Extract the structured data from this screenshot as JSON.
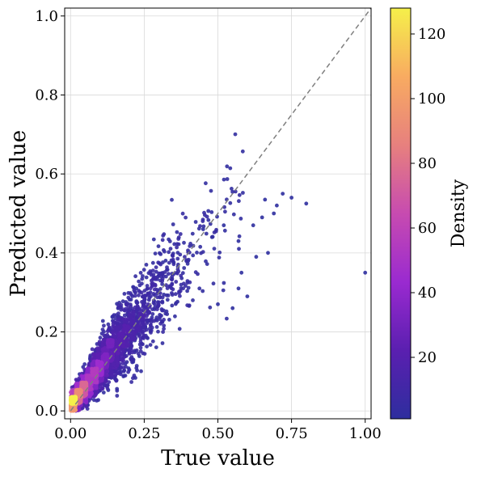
{
  "chart_data": {
    "type": "scatter",
    "title": "",
    "xlabel": "True value",
    "ylabel": "Predicted value",
    "xlim": [
      -0.02,
      1.02
    ],
    "ylim": [
      -0.02,
      1.02
    ],
    "x_ticks": [
      0.0,
      0.25,
      0.5,
      0.75,
      1.0
    ],
    "x_tick_labels": [
      "0.00",
      "0.25",
      "0.50",
      "0.75",
      "1.00"
    ],
    "y_ticks": [
      0.0,
      0.2,
      0.4,
      0.6,
      0.8,
      1.0
    ],
    "y_tick_labels": [
      "0.0",
      "0.2",
      "0.4",
      "0.6",
      "0.8",
      "1.0"
    ],
    "grid": true,
    "reference_line": {
      "from": [
        0,
        0
      ],
      "to": [
        1.02,
        1.02
      ],
      "style": "dashed",
      "color": "#7f7f7f"
    },
    "colorbar": {
      "label": "Density",
      "range": [
        1,
        128
      ],
      "ticks": [
        20,
        40,
        60,
        80,
        100,
        120
      ],
      "tick_labels": [
        "20",
        "40",
        "60",
        "80",
        "100",
        "120"
      ],
      "colormap": "plasma"
    },
    "colormap_stops": [
      "#2e2e9e",
      "#5a1fb0",
      "#9a2ad0",
      "#c74bb0",
      "#e7807e",
      "#f8ab61",
      "#f5f04a"
    ],
    "outlier_points": [
      {
        "x": 1.0,
        "y": 0.35,
        "density": 1
      },
      {
        "x": 0.8,
        "y": 0.525,
        "density": 1
      },
      {
        "x": 0.72,
        "y": 0.55,
        "density": 1
      },
      {
        "x": 0.75,
        "y": 0.54,
        "density": 1
      },
      {
        "x": 0.66,
        "y": 0.535,
        "density": 1
      },
      {
        "x": 0.65,
        "y": 0.49,
        "density": 1
      },
      {
        "x": 0.62,
        "y": 0.47,
        "density": 1
      },
      {
        "x": 0.7,
        "y": 0.52,
        "density": 1
      },
      {
        "x": 0.6,
        "y": 0.29,
        "density": 1
      },
      {
        "x": 0.57,
        "y": 0.31,
        "density": 1
      },
      {
        "x": 0.55,
        "y": 0.26,
        "density": 1
      },
      {
        "x": 0.5,
        "y": 0.27,
        "density": 1
      },
      {
        "x": 0.63,
        "y": 0.39,
        "density": 1
      },
      {
        "x": 0.67,
        "y": 0.4,
        "density": 1
      },
      {
        "x": 0.58,
        "y": 0.35,
        "density": 1
      },
      {
        "x": 0.52,
        "y": 0.47,
        "density": 1
      },
      {
        "x": 0.57,
        "y": 0.43,
        "density": 1
      },
      {
        "x": 0.48,
        "y": 0.44,
        "density": 1
      },
      {
        "x": 0.45,
        "y": 0.46,
        "density": 1
      },
      {
        "x": 0.69,
        "y": 0.5,
        "density": 1
      }
    ],
    "cluster_model": {
      "point_count": 3600,
      "x_distribution": "exponential",
      "x_mean": 0.11,
      "x_max": 0.62,
      "y_over_x_slope": 0.93,
      "y_intercept": 0.015,
      "noise_sd_base": 0.012,
      "noise_sd_per_x": 0.17,
      "peak_density": 128
    }
  }
}
